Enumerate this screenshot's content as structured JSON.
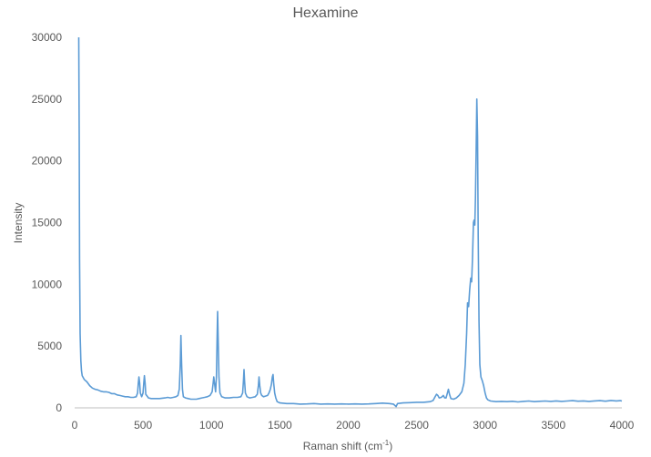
{
  "chart_data": {
    "type": "line",
    "title": "Hexamine",
    "xlabel": "Raman shift (cm",
    "xlabel_sup": "-1",
    "xlabel_close": ")",
    "ylabel": "Intensity",
    "xlim": [
      0,
      4000
    ],
    "ylim": [
      0,
      30000
    ],
    "x_ticks": [
      0,
      500,
      1000,
      1500,
      2000,
      2500,
      3000,
      3500,
      4000
    ],
    "y_ticks": [
      0,
      5000,
      10000,
      15000,
      20000,
      25000,
      30000
    ],
    "grid": false,
    "legend": "none",
    "series": [
      {
        "color": "#5B9BD5",
        "points": [
          [
            30,
            30000
          ],
          [
            33,
            22000
          ],
          [
            36,
            12000
          ],
          [
            40,
            6000
          ],
          [
            45,
            3800
          ],
          [
            50,
            3000
          ],
          [
            55,
            2600
          ],
          [
            70,
            2300
          ],
          [
            90,
            2100
          ],
          [
            110,
            1800
          ],
          [
            130,
            1600
          ],
          [
            150,
            1500
          ],
          [
            170,
            1450
          ],
          [
            190,
            1350
          ],
          [
            210,
            1300
          ],
          [
            230,
            1300
          ],
          [
            250,
            1250
          ],
          [
            270,
            1150
          ],
          [
            290,
            1150
          ],
          [
            310,
            1050
          ],
          [
            330,
            1000
          ],
          [
            350,
            950
          ],
          [
            370,
            900
          ],
          [
            390,
            900
          ],
          [
            410,
            850
          ],
          [
            430,
            850
          ],
          [
            450,
            900
          ],
          [
            460,
            1200
          ],
          [
            465,
            2000
          ],
          [
            470,
            2500
          ],
          [
            475,
            2000
          ],
          [
            480,
            1200
          ],
          [
            490,
            900
          ],
          [
            500,
            1200
          ],
          [
            505,
            2000
          ],
          [
            510,
            2600
          ],
          [
            515,
            2000
          ],
          [
            520,
            1100
          ],
          [
            540,
            800
          ],
          [
            560,
            750
          ],
          [
            580,
            750
          ],
          [
            600,
            750
          ],
          [
            620,
            750
          ],
          [
            640,
            780
          ],
          [
            660,
            800
          ],
          [
            680,
            850
          ],
          [
            700,
            800
          ],
          [
            720,
            850
          ],
          [
            740,
            900
          ],
          [
            755,
            1000
          ],
          [
            765,
            1500
          ],
          [
            772,
            3500
          ],
          [
            777,
            5850
          ],
          [
            782,
            3500
          ],
          [
            788,
            1500
          ],
          [
            795,
            900
          ],
          [
            810,
            800
          ],
          [
            830,
            750
          ],
          [
            850,
            700
          ],
          [
            870,
            700
          ],
          [
            890,
            700
          ],
          [
            910,
            750
          ],
          [
            930,
            800
          ],
          [
            950,
            850
          ],
          [
            970,
            900
          ],
          [
            990,
            1000
          ],
          [
            1005,
            1300
          ],
          [
            1012,
            2000
          ],
          [
            1017,
            2500
          ],
          [
            1022,
            2000
          ],
          [
            1030,
            1300
          ],
          [
            1036,
            2500
          ],
          [
            1041,
            5500
          ],
          [
            1045,
            7800
          ],
          [
            1050,
            5000
          ],
          [
            1055,
            2500
          ],
          [
            1062,
            1200
          ],
          [
            1075,
            900
          ],
          [
            1100,
            800
          ],
          [
            1130,
            800
          ],
          [
            1160,
            850
          ],
          [
            1190,
            850
          ],
          [
            1215,
            900
          ],
          [
            1228,
            1200
          ],
          [
            1234,
            2200
          ],
          [
            1238,
            3100
          ],
          [
            1242,
            2200
          ],
          [
            1248,
            1200
          ],
          [
            1260,
            900
          ],
          [
            1280,
            800
          ],
          [
            1300,
            850
          ],
          [
            1320,
            900
          ],
          [
            1335,
            1100
          ],
          [
            1343,
            1800
          ],
          [
            1348,
            2500
          ],
          [
            1353,
            1800
          ],
          [
            1360,
            1200
          ],
          [
            1368,
            1000
          ],
          [
            1380,
            900
          ],
          [
            1395,
            950
          ],
          [
            1410,
            1000
          ],
          [
            1420,
            1200
          ],
          [
            1430,
            1500
          ],
          [
            1438,
            1900
          ],
          [
            1445,
            2500
          ],
          [
            1450,
            2700
          ],
          [
            1455,
            2000
          ],
          [
            1462,
            1200
          ],
          [
            1470,
            800
          ],
          [
            1480,
            500
          ],
          [
            1500,
            400
          ],
          [
            1550,
            350
          ],
          [
            1600,
            350
          ],
          [
            1650,
            300
          ],
          [
            1700,
            320
          ],
          [
            1750,
            350
          ],
          [
            1800,
            300
          ],
          [
            1850,
            320
          ],
          [
            1900,
            300
          ],
          [
            1950,
            320
          ],
          [
            2000,
            300
          ],
          [
            2050,
            320
          ],
          [
            2100,
            300
          ],
          [
            2150,
            320
          ],
          [
            2200,
            350
          ],
          [
            2250,
            380
          ],
          [
            2300,
            350
          ],
          [
            2330,
            300
          ],
          [
            2350,
            100
          ],
          [
            2360,
            350
          ],
          [
            2400,
            400
          ],
          [
            2450,
            420
          ],
          [
            2500,
            450
          ],
          [
            2550,
            450
          ],
          [
            2600,
            500
          ],
          [
            2620,
            600
          ],
          [
            2635,
            900
          ],
          [
            2645,
            1100
          ],
          [
            2655,
            1000
          ],
          [
            2665,
            800
          ],
          [
            2680,
            850
          ],
          [
            2695,
            1000
          ],
          [
            2705,
            800
          ],
          [
            2715,
            800
          ],
          [
            2725,
            1200
          ],
          [
            2732,
            1500
          ],
          [
            2740,
            1100
          ],
          [
            2750,
            750
          ],
          [
            2770,
            700
          ],
          [
            2790,
            800
          ],
          [
            2810,
            1000
          ],
          [
            2830,
            1300
          ],
          [
            2845,
            2000
          ],
          [
            2855,
            3500
          ],
          [
            2865,
            6000
          ],
          [
            2872,
            8500
          ],
          [
            2880,
            8200
          ],
          [
            2887,
            9500
          ],
          [
            2895,
            10500
          ],
          [
            2902,
            10200
          ],
          [
            2908,
            12000
          ],
          [
            2915,
            15000
          ],
          [
            2920,
            15200
          ],
          [
            2925,
            14800
          ],
          [
            2930,
            17000
          ],
          [
            2935,
            21000
          ],
          [
            2940,
            25000
          ],
          [
            2945,
            22000
          ],
          [
            2950,
            14000
          ],
          [
            2956,
            7000
          ],
          [
            2962,
            3500
          ],
          [
            2970,
            2500
          ],
          [
            2980,
            2200
          ],
          [
            2990,
            1800
          ],
          [
            3000,
            1200
          ],
          [
            3010,
            800
          ],
          [
            3020,
            650
          ],
          [
            3040,
            550
          ],
          [
            3080,
            500
          ],
          [
            3120,
            520
          ],
          [
            3160,
            500
          ],
          [
            3200,
            530
          ],
          [
            3240,
            480
          ],
          [
            3280,
            520
          ],
          [
            3320,
            550
          ],
          [
            3360,
            500
          ],
          [
            3400,
            530
          ],
          [
            3440,
            550
          ],
          [
            3480,
            520
          ],
          [
            3520,
            560
          ],
          [
            3560,
            520
          ],
          [
            3600,
            550
          ],
          [
            3640,
            580
          ],
          [
            3680,
            540
          ],
          [
            3720,
            560
          ],
          [
            3760,
            520
          ],
          [
            3800,
            560
          ],
          [
            3840,
            580
          ],
          [
            3880,
            540
          ],
          [
            3920,
            600
          ],
          [
            3960,
            560
          ],
          [
            3990,
            580
          ],
          [
            4000,
            550
          ]
        ]
      }
    ]
  }
}
